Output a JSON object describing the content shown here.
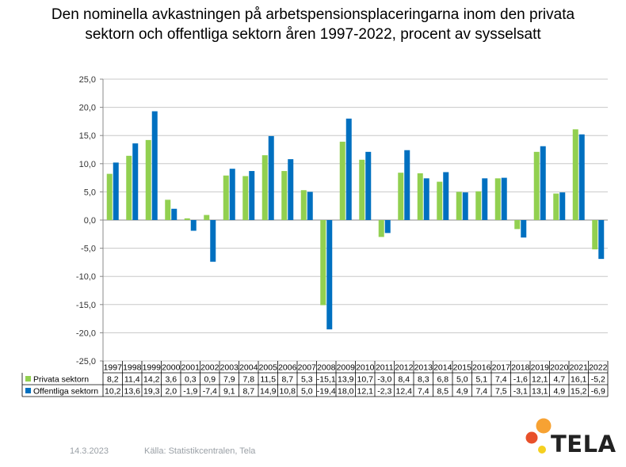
{
  "title": {
    "line1": "Den nominella avkastningen på arbetspensionsplaceringarna inom den privata",
    "line2": "sektorn och offentliga sektorn åren 1997-2022, procent av sysselsatt"
  },
  "colors": {
    "privata": "#92d050",
    "offentliga": "#0070c0",
    "grid": "#c8c8c8",
    "axis": "#888888"
  },
  "chart_data": {
    "type": "bar",
    "categories": [
      "1997",
      "1998",
      "1999",
      "2000",
      "2001",
      "2002",
      "2003",
      "2004",
      "2005",
      "2006",
      "2007",
      "2008",
      "2009",
      "2010",
      "2011",
      "2012",
      "2013",
      "2014",
      "2015",
      "2016",
      "2017",
      "2018",
      "2019",
      "2020",
      "2021",
      "2022"
    ],
    "series": [
      {
        "name": "Privata sektorn",
        "values": [
          8.2,
          11.4,
          14.2,
          3.6,
          0.3,
          0.9,
          7.9,
          7.8,
          11.5,
          8.7,
          5.3,
          -15.1,
          13.9,
          10.7,
          -3.0,
          8.4,
          8.3,
          6.8,
          5.0,
          5.1,
          7.4,
          -1.6,
          12.1,
          4.7,
          16.1,
          -5.2
        ],
        "labels": [
          "8,2",
          "11,4",
          "14,2",
          "3,6",
          "0,3",
          "0,9",
          "7,9",
          "7,8",
          "11,5",
          "8,7",
          "5,3",
          "-15,1",
          "13,9",
          "10,7",
          "-3,0",
          "8,4",
          "8,3",
          "6,8",
          "5,0",
          "5,1",
          "7,4",
          "-1,6",
          "12,1",
          "4,7",
          "16,1",
          "-5,2"
        ]
      },
      {
        "name": "Offentliga sektorn",
        "values": [
          10.2,
          13.6,
          19.3,
          2.0,
          -1.9,
          -7.4,
          9.1,
          8.7,
          14.9,
          10.8,
          5.0,
          -19.4,
          18.0,
          12.1,
          -2.3,
          12.4,
          7.4,
          8.5,
          4.9,
          7.4,
          7.5,
          -3.1,
          13.1,
          4.9,
          15.2,
          -6.9
        ],
        "labels": [
          "10,2",
          "13,6",
          "19,3",
          "2,0",
          "-1,9",
          "-7,4",
          "9,1",
          "8,7",
          "14,9",
          "10,8",
          "5,0",
          "-19,4",
          "18,0",
          "12,1",
          "-2,3",
          "12,4",
          "7,4",
          "8,5",
          "4,9",
          "7,4",
          "7,5",
          "-3,1",
          "13,1",
          "4,9",
          "15,2",
          "-6,9"
        ]
      }
    ],
    "ylim": [
      -25,
      25
    ],
    "yticks": [
      "25,0",
      "20,0",
      "15,0",
      "10,0",
      "5,0",
      "0,0",
      "-5,0",
      "-10,0",
      "-15,0",
      "-20,0",
      "-25,0"
    ],
    "grid": true,
    "legend": "data-table"
  },
  "footer": {
    "date": "14.3.2023",
    "source": "Källa: Statistikcentralen, Tela"
  },
  "logo": {
    "text": "TELA"
  }
}
